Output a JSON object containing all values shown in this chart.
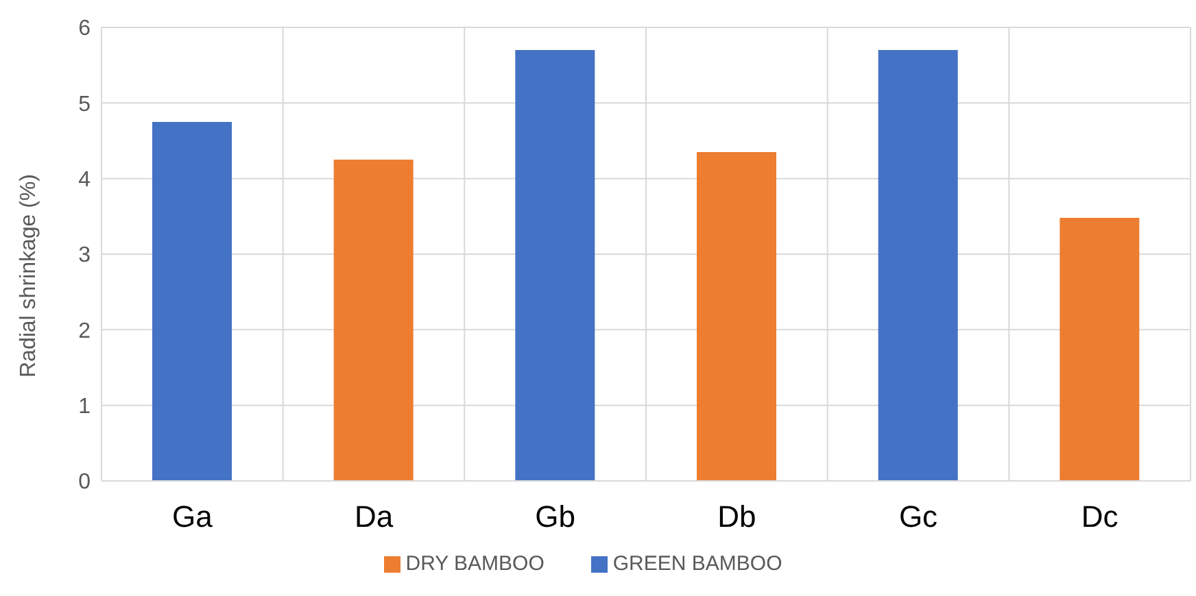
{
  "chart_data": {
    "type": "bar",
    "ylabel": "Radial shrinkage (%)",
    "categories": [
      "Ga",
      "Da",
      "Gb",
      "Db",
      "Gc",
      "Dc"
    ],
    "series": [
      {
        "name": "GREEN BAMBOO",
        "color": "#4472c4",
        "values": [
          4.75,
          null,
          5.7,
          null,
          5.7,
          null
        ]
      },
      {
        "name": "DRY BAMBOO",
        "color": "#ed7d31",
        "values": [
          null,
          4.25,
          null,
          4.35,
          null,
          3.48
        ]
      }
    ],
    "ylim": [
      0,
      6
    ],
    "yticks": [
      0,
      1,
      2,
      3,
      4,
      5,
      6
    ],
    "grid": true,
    "legend": "bottom"
  }
}
